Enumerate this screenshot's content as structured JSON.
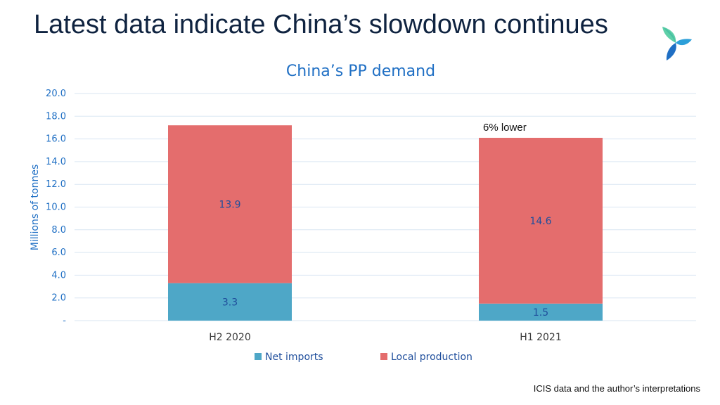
{
  "slide": {
    "title": "Latest data indicate China’s slowdown continues",
    "source_note": "ICIS data and the author’s interpretations"
  },
  "colors": {
    "net_imports": "#4ea7c7",
    "local_production": "#e46d6d",
    "grid": "#d9e6f2",
    "accent": "#1f6fc4"
  },
  "icons": {
    "logo": "icis-logo-icon"
  },
  "chart_data": {
    "type": "bar",
    "stacked": true,
    "title": "China’s PP demand",
    "xlabel": "",
    "ylabel": "Millions of tonnes",
    "categories": [
      "H2 2020",
      "H1 2021"
    ],
    "series": [
      {
        "name": "Net imports",
        "values": [
          3.3,
          1.5
        ],
        "labels": [
          "3.3",
          "1.5"
        ]
      },
      {
        "name": "Local production",
        "values": [
          13.9,
          14.6
        ],
        "labels": [
          "13.9",
          "14.6"
        ]
      }
    ],
    "ylim": [
      0,
      20
    ],
    "y_ticks": [
      0,
      2,
      4,
      6,
      8,
      10,
      12,
      14,
      16,
      18,
      20
    ],
    "y_tick_labels": [
      "-",
      "2.0",
      "4.0",
      "6.0",
      "8.0",
      "10.0",
      "12.0",
      "14.0",
      "16.0",
      "18.0",
      "20.0"
    ],
    "grid": true,
    "legend_position": "bottom",
    "annotations": [
      {
        "category": "H1 2021",
        "text": "6% lower"
      }
    ]
  }
}
